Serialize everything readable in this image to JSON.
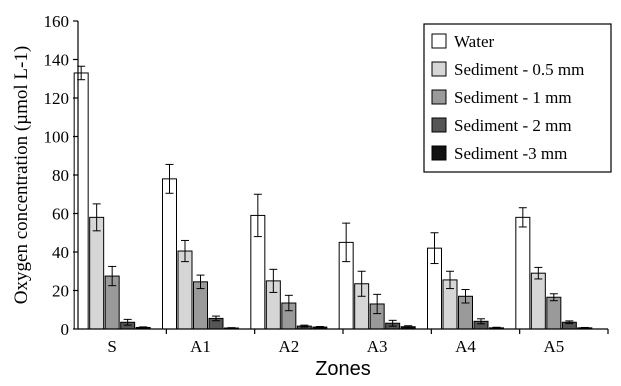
{
  "chart_data": {
    "type": "bar",
    "title": "",
    "xlabel": "Zones",
    "ylabel": "Oxygen concentration (µmol L-1)",
    "ylim": [
      0,
      160
    ],
    "yticks": [
      0,
      20,
      40,
      60,
      80,
      100,
      120,
      140,
      160
    ],
    "grid": false,
    "legend_position": "top-right",
    "categories": [
      "S",
      "A1",
      "A2",
      "A3",
      "A4",
      "A5"
    ],
    "series": [
      {
        "name": "Water",
        "color": "#ffffff",
        "values": [
          133,
          78,
          59,
          45,
          42,
          58
        ],
        "errors": [
          3.5,
          7.5,
          11,
          10,
          8,
          5
        ]
      },
      {
        "name": "Sediment - 0.5 mm",
        "color": "#d6d6d6",
        "values": [
          58,
          40.5,
          25,
          23.5,
          25.5,
          29
        ],
        "errors": [
          7,
          5.5,
          6,
          6.5,
          4.5,
          3
        ]
      },
      {
        "name": "Sediment - 1 mm",
        "color": "#9a9a9a",
        "values": [
          27.5,
          24.5,
          13.5,
          13,
          17,
          16.5
        ],
        "errors": [
          5,
          3.5,
          4,
          5,
          3.5,
          1.8
        ]
      },
      {
        "name": "Sediment - 2 mm",
        "color": "#555555",
        "values": [
          3.5,
          5.5,
          1.5,
          3,
          4,
          3.5
        ],
        "errors": [
          1.5,
          1.2,
          0.5,
          1.5,
          1.3,
          0.7
        ]
      },
      {
        "name": "Sediment -3  mm",
        "color": "#111111",
        "values": [
          0.8,
          0.5,
          1,
          1.2,
          0.6,
          0.6
        ],
        "errors": [
          0.3,
          0.2,
          0.3,
          0.5,
          0.3,
          0.2
        ]
      }
    ]
  }
}
